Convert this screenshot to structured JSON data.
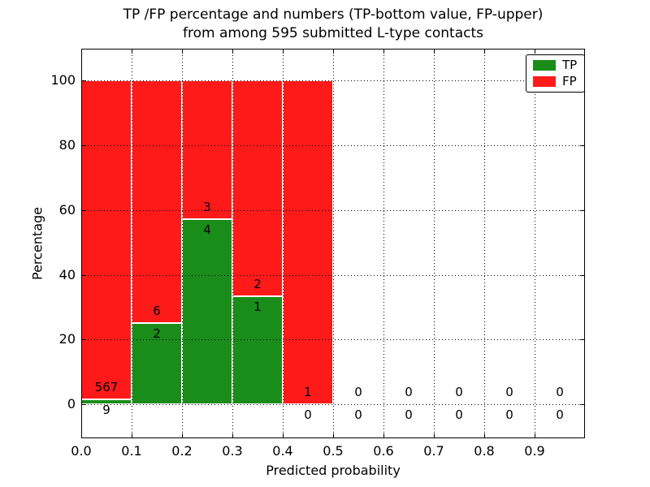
{
  "chart_data": {
    "type": "bar",
    "stacking": "percent",
    "title": "TP /FP percentage and numbers (TP-bottom value, FP-upper)",
    "subtitle": "from among 595 submitted L-type contacts",
    "xlabel": "Predicted probability",
    "ylabel": "Percentage",
    "xlim": [
      0.0,
      1.0
    ],
    "ylim": [
      -10.5,
      109.8
    ],
    "x_tick_labels": [
      "0.0",
      "0.1",
      "0.2",
      "0.3",
      "0.4",
      "0.5",
      "0.6",
      "0.7",
      "0.8",
      "0.9"
    ],
    "y_tick_values": [
      0,
      20,
      40,
      60,
      80,
      100
    ],
    "grid": "dotted",
    "total_submitted": 595,
    "series_note": "bars show TP% (green, bottom) and FP% (red, top) of contacts per predicted-probability bin; numeric labels are raw counts (TP below, FP above)",
    "bins": [
      {
        "x_start": 0.0,
        "x_end": 0.1,
        "tp": 9,
        "fp": 567
      },
      {
        "x_start": 0.1,
        "x_end": 0.2,
        "tp": 2,
        "fp": 6
      },
      {
        "x_start": 0.2,
        "x_end": 0.3,
        "tp": 4,
        "fp": 3
      },
      {
        "x_start": 0.3,
        "x_end": 0.4,
        "tp": 1,
        "fp": 2
      },
      {
        "x_start": 0.4,
        "x_end": 0.5,
        "tp": 0,
        "fp": 1
      },
      {
        "x_start": 0.5,
        "x_end": 0.6,
        "tp": 0,
        "fp": 0
      },
      {
        "x_start": 0.6,
        "x_end": 0.7,
        "tp": 0,
        "fp": 0
      },
      {
        "x_start": 0.7,
        "x_end": 0.8,
        "tp": 0,
        "fp": 0
      },
      {
        "x_start": 0.8,
        "x_end": 0.9,
        "tp": 0,
        "fp": 0
      },
      {
        "x_start": 0.9,
        "x_end": 1.0,
        "tp": 0,
        "fp": 0
      }
    ],
    "legend": {
      "position": "upper right",
      "entries": [
        {
          "label": "TP",
          "color": "#1a8c1a"
        },
        {
          "label": "FP",
          "color": "#ff1a1a"
        }
      ]
    },
    "colors": {
      "tp": "#1a8c1a",
      "fp": "#ff1a1a",
      "grid": "#000000",
      "background": "#ffffff"
    }
  }
}
